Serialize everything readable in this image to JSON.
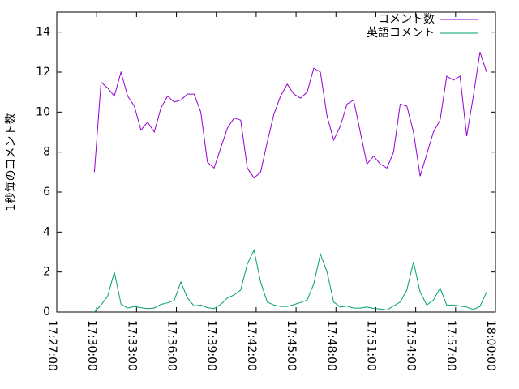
{
  "chart_data": {
    "type": "line",
    "y_label": "1秒毎のコメント数",
    "x": [
      "17:29:50",
      "17:30:20",
      "17:30:50",
      "17:31:20",
      "17:31:50",
      "17:32:20",
      "17:32:50",
      "17:33:20",
      "17:33:50",
      "17:34:20",
      "17:34:50",
      "17:35:20",
      "17:35:50",
      "17:36:20",
      "17:36:50",
      "17:37:20",
      "17:37:50",
      "17:38:20",
      "17:38:50",
      "17:39:20",
      "17:39:50",
      "17:40:20",
      "17:40:50",
      "17:41:20",
      "17:41:50",
      "17:42:20",
      "17:42:50",
      "17:43:20",
      "17:43:50",
      "17:44:20",
      "17:44:50",
      "17:45:20",
      "17:45:50",
      "17:46:20",
      "17:46:50",
      "17:47:20",
      "17:47:50",
      "17:48:20",
      "17:48:50",
      "17:49:20",
      "17:49:50",
      "17:50:20",
      "17:50:50",
      "17:51:20",
      "17:51:50",
      "17:52:20",
      "17:52:50",
      "17:53:20",
      "17:53:50",
      "17:54:20",
      "17:54:50",
      "17:55:20",
      "17:55:50",
      "17:56:20",
      "17:56:50",
      "17:57:20",
      "17:57:50",
      "17:58:20",
      "17:58:50",
      "17:59:20"
    ],
    "series": [
      {
        "name": "コメント数",
        "color": "#9400d3",
        "values": [
          7.0,
          11.5,
          11.2,
          10.8,
          12.0,
          10.8,
          10.3,
          9.1,
          9.5,
          9.0,
          10.2,
          10.8,
          10.5,
          10.6,
          10.9,
          10.9,
          10.0,
          7.5,
          7.2,
          8.2,
          9.2,
          9.7,
          9.6,
          7.2,
          6.7,
          7.0,
          8.5,
          9.9,
          10.8,
          11.4,
          10.9,
          10.7,
          11.0,
          12.2,
          12.0,
          9.8,
          8.6,
          9.3,
          10.4,
          10.6,
          9.0,
          7.4,
          7.8,
          7.4,
          7.2,
          8.0,
          10.4,
          10.3,
          9.0,
          6.8,
          7.9,
          9.0,
          9.6,
          11.8,
          11.6,
          11.8,
          8.8,
          10.8,
          13.0,
          12.0
        ]
      },
      {
        "name": "英語コメント",
        "color": "#009e73",
        "values": [
          0.0,
          0.35,
          0.8,
          2.0,
          0.4,
          0.2,
          0.28,
          0.22,
          0.17,
          0.2,
          0.38,
          0.46,
          0.58,
          1.5,
          0.7,
          0.3,
          0.35,
          0.22,
          0.17,
          0.38,
          0.7,
          0.85,
          1.1,
          2.4,
          3.1,
          1.5,
          0.5,
          0.35,
          0.28,
          0.28,
          0.37,
          0.48,
          0.6,
          1.4,
          2.9,
          2.0,
          0.5,
          0.25,
          0.3,
          0.2,
          0.2,
          0.25,
          0.18,
          0.15,
          0.1,
          0.3,
          0.5,
          1.1,
          2.5,
          1.0,
          0.35,
          0.6,
          1.2,
          0.35,
          0.35,
          0.3,
          0.25,
          0.12,
          0.28,
          1.0
        ]
      }
    ],
    "xlim": [
      "17:27:00",
      "18:00:00"
    ],
    "xticks": [
      "17:27:00",
      "17:30:00",
      "17:33:00",
      "17:36:00",
      "17:39:00",
      "17:42:00",
      "17:45:00",
      "17:48:00",
      "17:51:00",
      "17:54:00",
      "17:57:00",
      "18:00:00"
    ],
    "ylim": [
      0,
      15
    ],
    "yticks": [
      0,
      2,
      4,
      6,
      8,
      10,
      12,
      14
    ],
    "legend": "top-right"
  }
}
